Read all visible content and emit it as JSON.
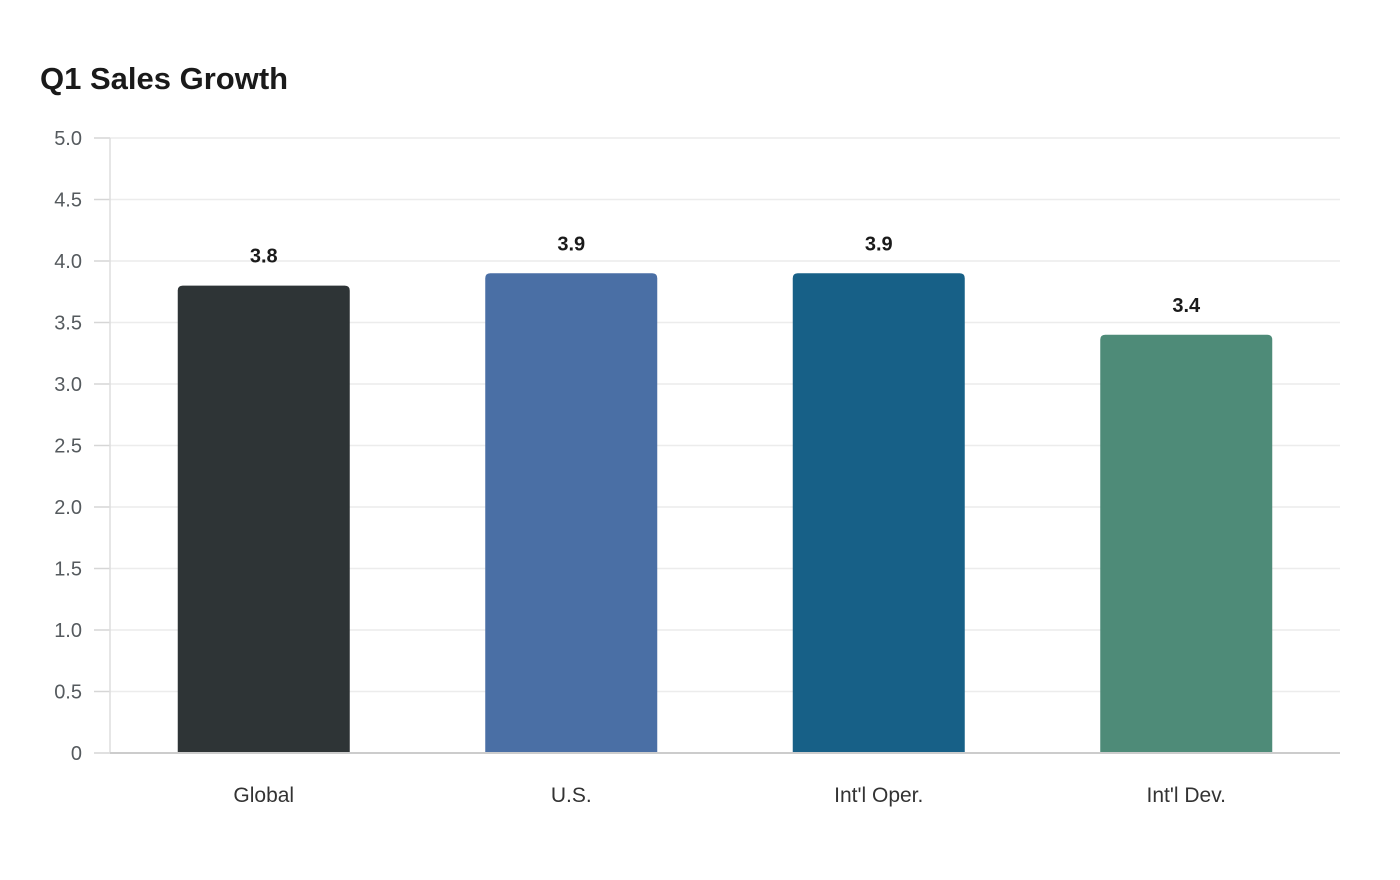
{
  "chart_data": {
    "type": "bar",
    "title": "Q1 Sales Growth",
    "xlabel": "",
    "ylabel": "",
    "categories": [
      "Global",
      "U.S.",
      "Int'l Oper.",
      "Int'l Dev."
    ],
    "values": [
      3.8,
      3.9,
      3.9,
      3.4
    ],
    "value_labels": [
      "3.8",
      "3.9",
      "3.9",
      "3.4"
    ],
    "colors": [
      "#2e3436",
      "#4a6fa5",
      "#176087",
      "#4e8b78"
    ],
    "ylim": [
      0,
      5
    ],
    "yticks": [
      0,
      0.5,
      1.0,
      1.5,
      2.0,
      2.5,
      3.0,
      3.5,
      4.0,
      4.5,
      5.0
    ],
    "ytick_labels": [
      "0",
      "0.5",
      "1.0",
      "1.5",
      "2.0",
      "2.5",
      "3.0",
      "3.5",
      "4.0",
      "4.5",
      "5.0"
    ],
    "grid": true,
    "legend": "none"
  }
}
